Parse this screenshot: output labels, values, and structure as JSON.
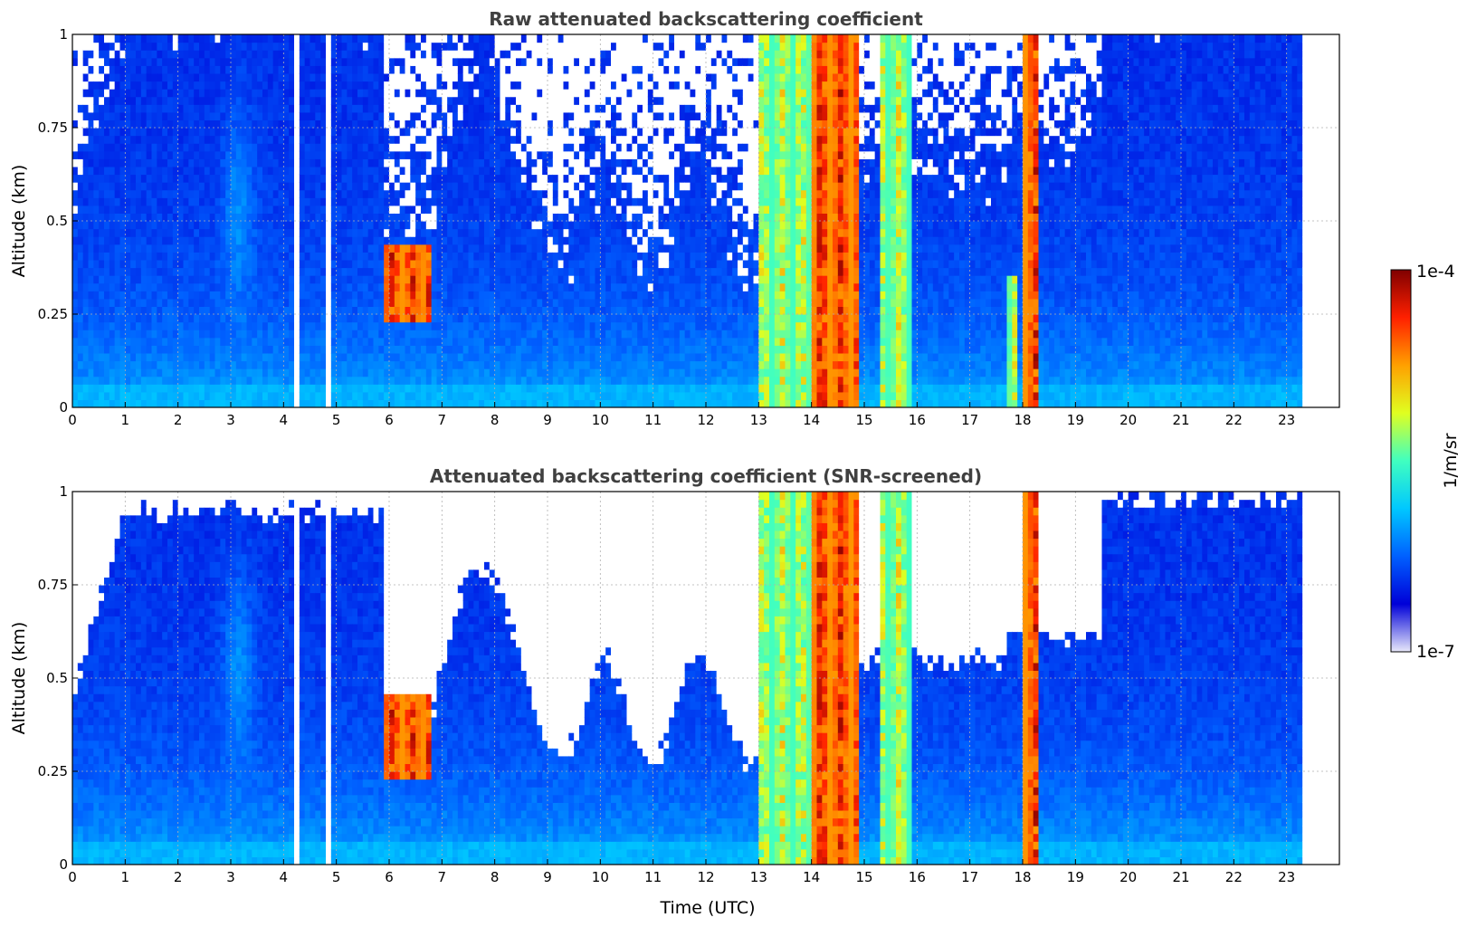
{
  "chart_data": [
    {
      "type": "heatmap",
      "title": "Raw attenuated backscattering coefficient",
      "xlabel": "",
      "ylabel": "Altitude (km)",
      "xlim": [
        0,
        24
      ],
      "ylim": [
        0,
        1
      ],
      "xticks": [
        "0",
        "1",
        "2",
        "3",
        "4",
        "5",
        "6",
        "7",
        "8",
        "9",
        "10",
        "11",
        "12",
        "13",
        "14",
        "15",
        "16",
        "17",
        "18",
        "19",
        "20",
        "21",
        "22",
        "23"
      ],
      "yticks": [
        "0",
        "0.25",
        "0.5",
        "0.75",
        "1"
      ],
      "grid": true,
      "data_gaps_hours": [
        [
          4.18,
          4.3
        ],
        [
          4.76,
          4.91
        ],
        [
          23.3,
          24
        ]
      ],
      "features": [
        {
          "t_start": 5.95,
          "t_end": 6.85,
          "alt_low": 0.22,
          "alt_high": 0.43,
          "level": "high"
        },
        {
          "t_start": 13.05,
          "t_end": 14.0,
          "alt_low": 0,
          "alt_high": 1,
          "level": "mid"
        },
        {
          "t_start": 14.0,
          "t_end": 14.95,
          "alt_low": 0,
          "alt_high": 1,
          "level": "high"
        },
        {
          "t_start": 15.35,
          "t_end": 15.95,
          "alt_low": 0,
          "alt_high": 1,
          "level": "mid"
        },
        {
          "t_start": 17.75,
          "t_end": 17.9,
          "alt_low": 0,
          "alt_high": 0.35,
          "level": "mid"
        },
        {
          "t_start": 18.0,
          "t_end": 18.35,
          "alt_low": 0,
          "alt_high": 1,
          "level": "high"
        }
      ],
      "screened": false
    },
    {
      "type": "heatmap",
      "title": "Attenuated backscattering coefficient (SNR-screened)",
      "xlabel": "Time (UTC)",
      "ylabel": "Altitude (km)",
      "xlim": [
        0,
        24
      ],
      "ylim": [
        0,
        1
      ],
      "xticks": [
        "0",
        "1",
        "2",
        "3",
        "4",
        "5",
        "6",
        "7",
        "8",
        "9",
        "10",
        "11",
        "12",
        "13",
        "14",
        "15",
        "16",
        "17",
        "18",
        "19",
        "20",
        "21",
        "22",
        "23"
      ],
      "yticks": [
        "0",
        "0.25",
        "0.5",
        "0.75",
        "1"
      ],
      "grid": true,
      "data_gaps_hours": [
        [
          4.18,
          4.3
        ],
        [
          4.76,
          4.91
        ],
        [
          23.3,
          24
        ]
      ],
      "features": [
        {
          "t_start": 5.95,
          "t_end": 6.85,
          "alt_low": 0.22,
          "alt_high": 0.45,
          "level": "high"
        },
        {
          "t_start": 13.05,
          "t_end": 14.0,
          "alt_low": 0,
          "alt_high": 1,
          "level": "mid"
        },
        {
          "t_start": 14.0,
          "t_end": 14.95,
          "alt_low": 0,
          "alt_high": 1,
          "level": "high"
        },
        {
          "t_start": 15.35,
          "t_end": 15.95,
          "alt_low": 0,
          "alt_high": 1,
          "level": "mid"
        },
        {
          "t_start": 18.0,
          "t_end": 18.35,
          "alt_low": 0,
          "alt_high": 1,
          "level": "high"
        }
      ],
      "screened": true
    }
  ],
  "colorbar": {
    "label": "1/m/sr",
    "max_label": "1e-4",
    "min_label": "1e-7",
    "colors": [
      "#e8e8fa",
      "#0000d8",
      "#0060ff",
      "#00c8ff",
      "#40ffc0",
      "#e0ff20",
      "#ffa000",
      "#ff2000",
      "#800000"
    ]
  }
}
